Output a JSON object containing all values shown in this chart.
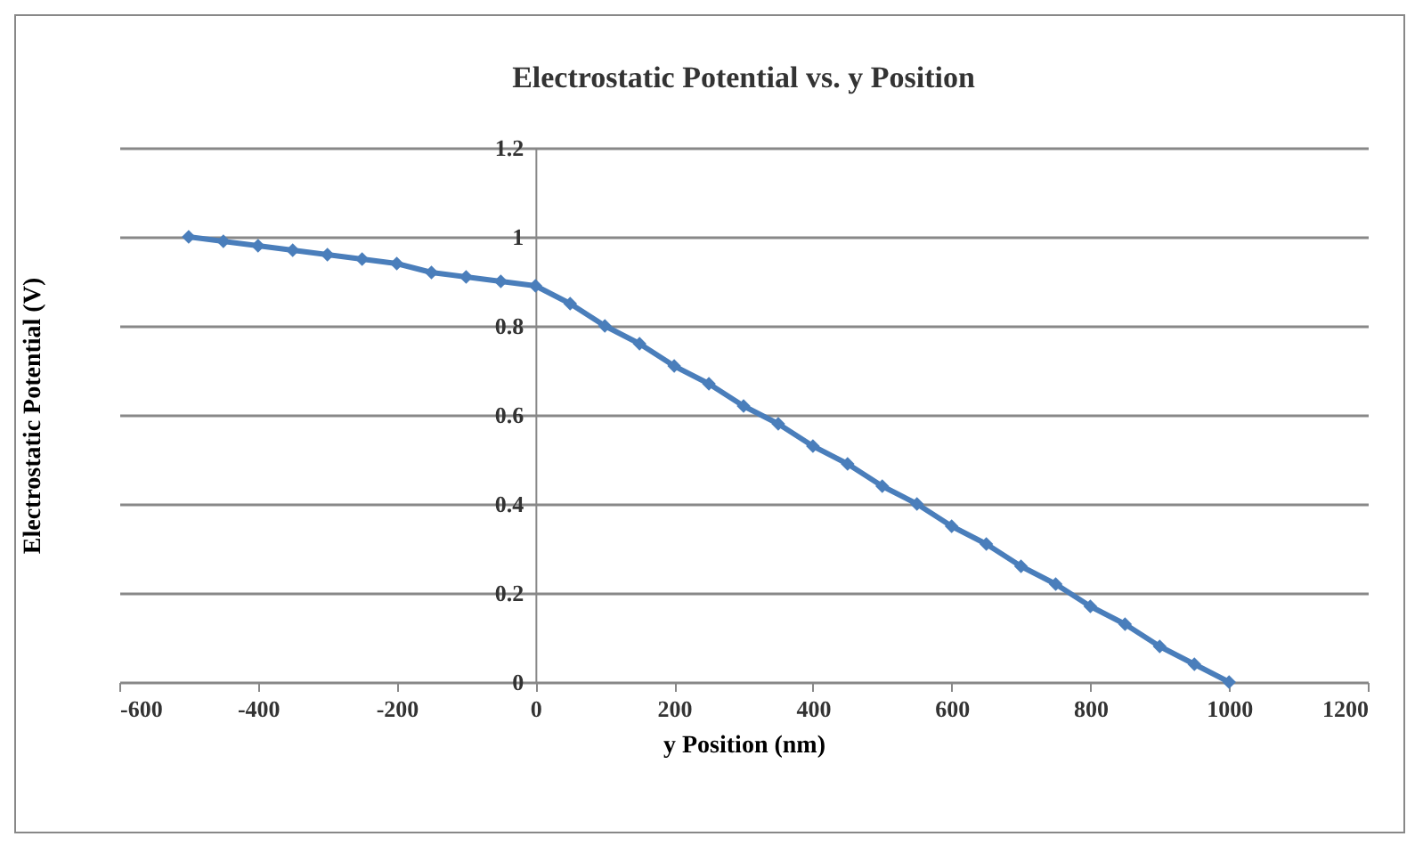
{
  "chart_data": {
    "type": "line",
    "title": "Electrostatic Potential vs. y Position",
    "xlabel": "y Position (nm)",
    "ylabel": "Electrostatic Potential (V)",
    "x": [
      -500,
      -450,
      -400,
      -350,
      -300,
      -250,
      -200,
      -150,
      -100,
      -50,
      0,
      50,
      100,
      150,
      200,
      250,
      300,
      350,
      400,
      450,
      500,
      550,
      600,
      650,
      700,
      750,
      800,
      850,
      900,
      950,
      1000
    ],
    "series": [
      {
        "color": "#4a7ebb",
        "values": [
          1.0,
          0.99,
          0.98,
          0.97,
          0.96,
          0.95,
          0.94,
          0.92,
          0.91,
          0.9,
          0.89,
          0.85,
          0.8,
          0.76,
          0.71,
          0.67,
          0.62,
          0.58,
          0.53,
          0.49,
          0.44,
          0.4,
          0.35,
          0.31,
          0.26,
          0.22,
          0.17,
          0.13,
          0.08,
          0.04,
          0.0
        ]
      }
    ],
    "xlim": [
      -600,
      1200
    ],
    "xticks": [
      -600,
      -400,
      -200,
      0,
      200,
      400,
      600,
      800,
      1000,
      1200
    ],
    "ylim": [
      0,
      1.2
    ],
    "yticks": [
      0,
      0.2,
      0.4,
      0.6,
      0.8,
      1,
      1.2
    ],
    "grid": "y",
    "legend": false,
    "marker": "diamond",
    "line_style": "solid"
  }
}
